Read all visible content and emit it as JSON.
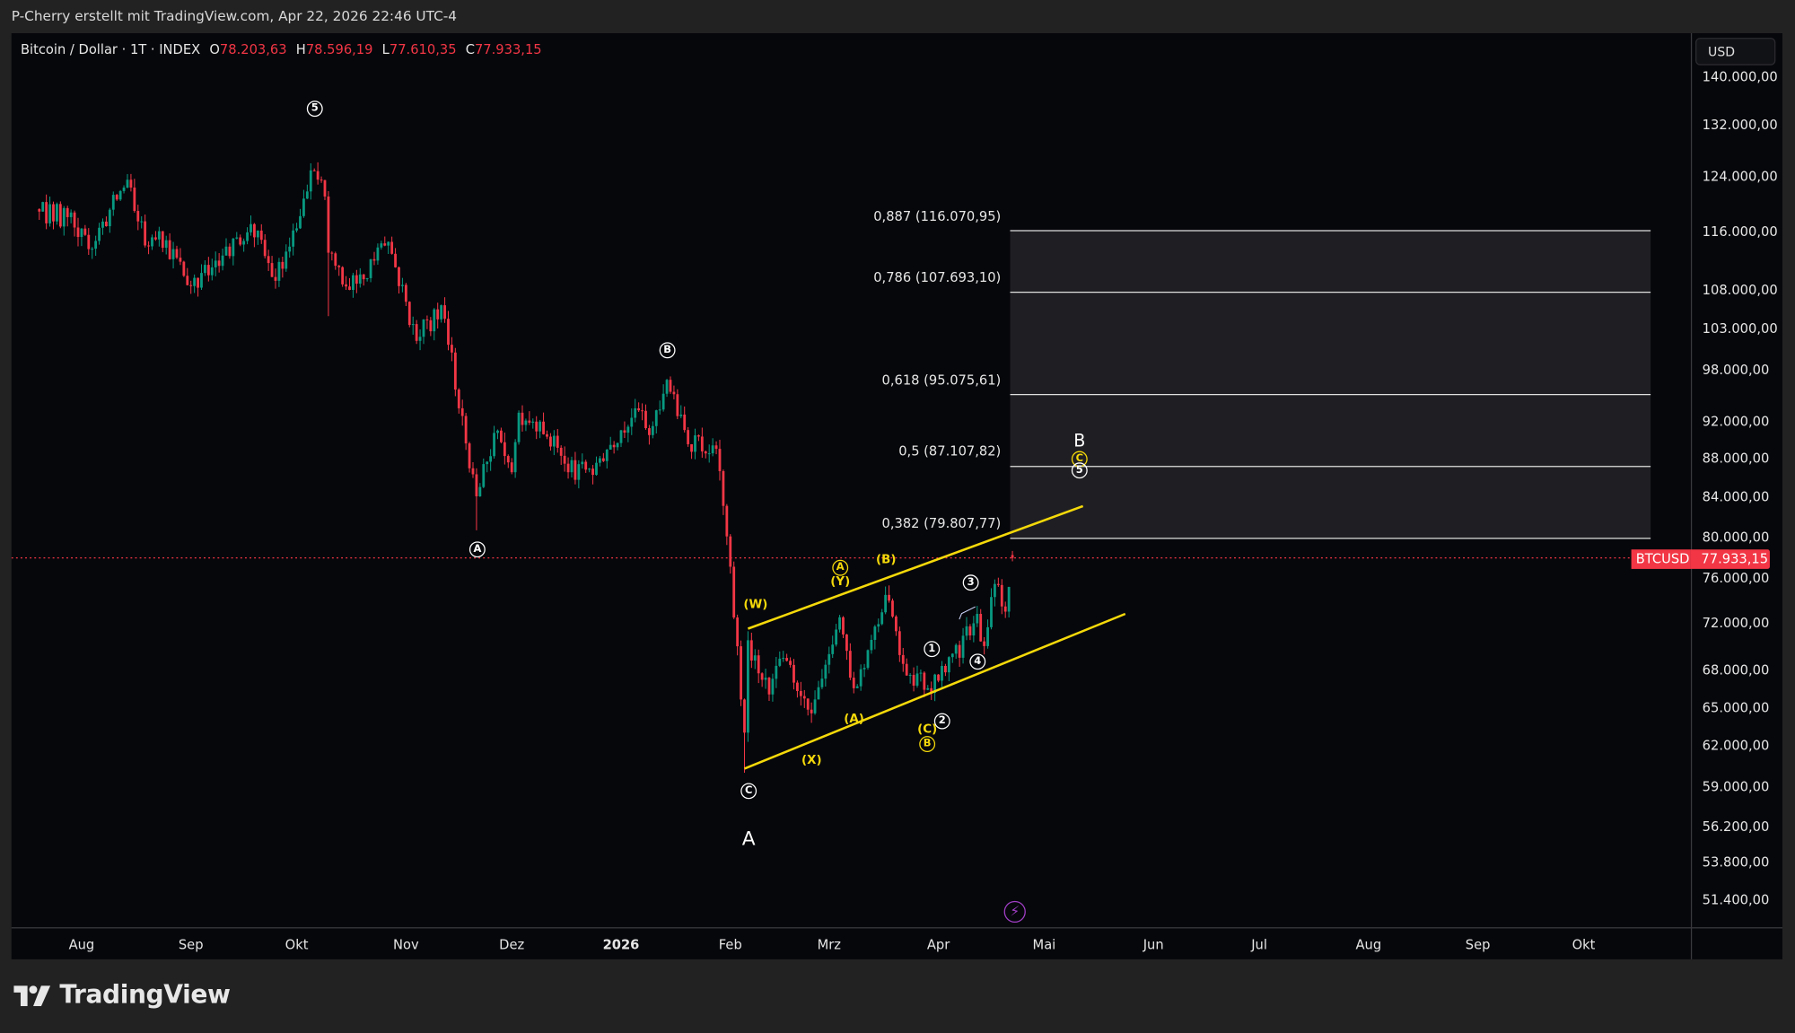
{
  "header": {
    "attribution": "P-Cherry erstellt mit TradingView.com, Apr 22, 2026 22:46 UTC-4"
  },
  "legend": {
    "symbol": "Bitcoin / Dollar · 1T · INDEX",
    "o_label": "O",
    "o_value": "78.203,63",
    "h_label": "H",
    "h_value": "78.596,19",
    "l_label": "L",
    "l_value": "77.610,35",
    "c_label": "C",
    "c_value": "77.933,15"
  },
  "currency_button": "USD",
  "price_tag": {
    "symbol": "BTCUSD",
    "value": "77.933,15"
  },
  "colors": {
    "up": "#089981",
    "down": "#f23645",
    "channel": "#f5d90a",
    "fib": "#e0e0e0",
    "price_line": "#f23645"
  },
  "branding": {
    "name": "TradingView"
  },
  "annotations": {
    "top5": "5",
    "wA": "A",
    "wB": "B",
    "wC": "C",
    "bigA": "A",
    "W": "(W)",
    "yA": "A",
    "Y": "(Y)",
    "pB": "(B)",
    "pA": "(A)",
    "X": "(X)",
    "pC": "(C)",
    "yB": "B",
    "n1": "1",
    "n2": "2",
    "n3": "3",
    "n4": "4",
    "bigB": "B",
    "yC": "C",
    "n5": "5"
  },
  "fib_levels": [
    {
      "label": "0,887 (116.070,95)",
      "price": 116070.95
    },
    {
      "label": "0,786 (107.693,10)",
      "price": 107693.1
    },
    {
      "label": "0,618 (95.075,61)",
      "price": 95075.61
    },
    {
      "label": "0,5 (87.107,82)",
      "price": 87107.82
    },
    {
      "label": "0,382 (79.807,77)",
      "price": 79807.77
    }
  ],
  "chart_data": {
    "type": "candlestick",
    "title": "Bitcoin / Dollar · 1T · INDEX",
    "scale": "log",
    "ylim": [
      49000,
      150000
    ],
    "y_ticks": [
      {
        "label": "140.000,00",
        "value": 140000
      },
      {
        "label": "132.000,00",
        "value": 132000
      },
      {
        "label": "124.000,00",
        "value": 124000
      },
      {
        "label": "116.000,00",
        "value": 116000
      },
      {
        "label": "108.000,00",
        "value": 108000
      },
      {
        "label": "103.000,00",
        "value": 103000
      },
      {
        "label": "98.000,00",
        "value": 98000
      },
      {
        "label": "92.000,00",
        "value": 92000
      },
      {
        "label": "88.000,00",
        "value": 88000
      },
      {
        "label": "84.000,00",
        "value": 84000
      },
      {
        "label": "80.000,00",
        "value": 80000
      },
      {
        "label": "76.000,00",
        "value": 76000
      },
      {
        "label": "72.000,00",
        "value": 72000
      },
      {
        "label": "68.000,00",
        "value": 68000
      },
      {
        "label": "65.000,00",
        "value": 65000
      },
      {
        "label": "62.000,00",
        "value": 62000
      },
      {
        "label": "59.000,00",
        "value": 59000
      },
      {
        "label": "56.200,00",
        "value": 56200
      },
      {
        "label": "53.800,00",
        "value": 53800
      },
      {
        "label": "51.400,00",
        "value": 51400
      }
    ],
    "x_ticks": [
      {
        "label": "Aug",
        "date": "2025-08-01"
      },
      {
        "label": "Sep",
        "date": "2025-09-01"
      },
      {
        "label": "Okt",
        "date": "2025-10-01"
      },
      {
        "label": "Nov",
        "date": "2025-11-01"
      },
      {
        "label": "Dez",
        "date": "2025-12-01"
      },
      {
        "label": "2026",
        "date": "2026-01-01",
        "bold": true
      },
      {
        "label": "Feb",
        "date": "2026-02-01"
      },
      {
        "label": "Mrz",
        "date": "2026-03-01"
      },
      {
        "label": "Apr",
        "date": "2026-04-01"
      },
      {
        "label": "Mai",
        "date": "2026-05-01"
      },
      {
        "label": "Jun",
        "date": "2026-06-01"
      },
      {
        "label": "Jul",
        "date": "2026-07-01"
      },
      {
        "label": "Aug",
        "date": "2026-08-01"
      },
      {
        "label": "Sep",
        "date": "2026-09-01"
      },
      {
        "label": "Okt",
        "date": "2026-10-01"
      }
    ],
    "start": "2025-07-20",
    "end": "2026-04-22",
    "close_pivots": [
      [
        "2025-07-20",
        118800
      ],
      [
        "2025-07-28",
        118000
      ],
      [
        "2025-08-03",
        113500
      ],
      [
        "2025-08-14",
        123500
      ],
      [
        "2025-08-19",
        114000
      ],
      [
        "2025-08-23",
        116000
      ],
      [
        "2025-09-01",
        108500
      ],
      [
        "2025-09-07",
        111000
      ],
      [
        "2025-09-18",
        117000
      ],
      [
        "2025-09-25",
        109200
      ],
      [
        "2025-10-06",
        124800
      ],
      [
        "2025-10-09",
        121000
      ],
      [
        "2025-10-10",
        113000
      ],
      [
        "2025-10-16",
        108000
      ],
      [
        "2025-10-27",
        114500
      ],
      [
        "2025-11-04",
        101500
      ],
      [
        "2025-11-11",
        106000
      ],
      [
        "2025-11-21",
        84000
      ],
      [
        "2025-11-27",
        91000
      ],
      [
        "2025-12-01",
        86500
      ],
      [
        "2025-12-03",
        93000
      ],
      [
        "2025-12-09",
        92000
      ],
      [
        "2025-12-17",
        86500
      ],
      [
        "2025-12-25",
        87500
      ],
      [
        "2026-01-05",
        93500
      ],
      [
        "2026-01-09",
        90500
      ],
      [
        "2026-01-14",
        96800
      ],
      [
        "2026-01-20",
        89500
      ],
      [
        "2026-01-28",
        89000
      ],
      [
        "2026-01-31",
        80000
      ],
      [
        "2026-02-05",
        63000
      ],
      [
        "2026-02-06",
        70500
      ],
      [
        "2026-02-12",
        66000
      ],
      [
        "2026-02-16",
        69000
      ],
      [
        "2026-02-24",
        64500
      ],
      [
        "2026-03-04",
        72500
      ],
      [
        "2026-03-08",
        66500
      ],
      [
        "2026-03-17",
        74500
      ],
      [
        "2026-03-22",
        68500
      ],
      [
        "2026-03-29",
        66500
      ],
      [
        "2026-04-03",
        67800
      ],
      [
        "2026-04-12",
        72800
      ],
      [
        "2026-04-14",
        70000
      ],
      [
        "2026-04-17",
        75500
      ],
      [
        "2026-04-20",
        73000
      ],
      [
        "2026-04-22",
        77933.15
      ]
    ],
    "overrides": {
      "2025-10-10": {
        "low": 104600
      },
      "2025-11-21": {
        "low": 80600
      },
      "2026-02-05": {
        "low": 60000
      },
      "2026-04-22": {
        "open": 78203.63,
        "high": 78596.19,
        "low": 77610.35
      }
    },
    "last_price": 77933.15,
    "channel": {
      "upper": [
        [
          "2026-02-06",
          71500
        ],
        [
          "2026-05-12",
          83000
        ]
      ],
      "lower": [
        [
          "2026-02-05",
          60300
        ],
        [
          "2026-05-24",
          72800
        ]
      ]
    },
    "fib_box": {
      "from": "2026-04-22",
      "to": "2026-10-20"
    }
  }
}
